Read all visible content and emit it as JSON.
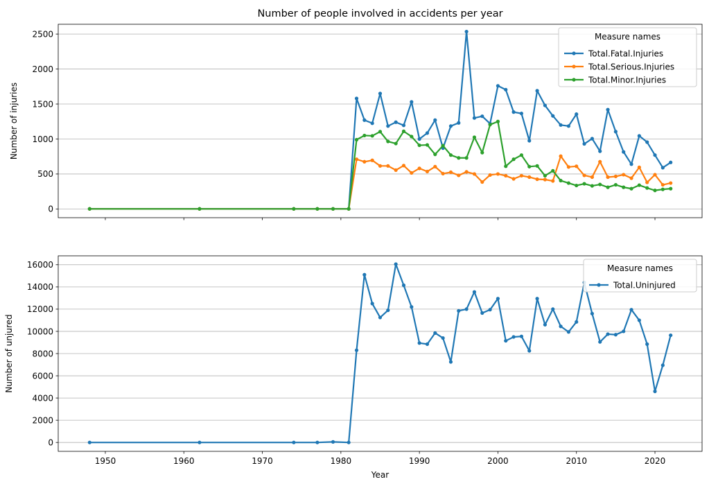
{
  "chart_data": [
    {
      "type": "line",
      "title": "Number of people involved in accidents per year",
      "xlabel": "",
      "ylabel": "Number of injuries",
      "xlim": [
        1944,
        2026
      ],
      "ylim": [
        -125,
        2640
      ],
      "yticks": [
        0,
        500,
        1000,
        1500,
        2000,
        2500
      ],
      "xticks": [
        1950,
        1960,
        1970,
        1980,
        1990,
        2000,
        2010,
        2020
      ],
      "show_xtick_labels": false,
      "grid": "y",
      "legend": {
        "title": "Measure names",
        "placement": "top-right"
      },
      "x": [
        1948,
        1962,
        1974,
        1977,
        1979,
        1981,
        1982,
        1983,
        1984,
        1985,
        1986,
        1987,
        1988,
        1989,
        1990,
        1991,
        1992,
        1993,
        1994,
        1995,
        1996,
        1997,
        1998,
        1999,
        2000,
        2001,
        2002,
        2003,
        2004,
        2005,
        2006,
        2007,
        2008,
        2009,
        2010,
        2011,
        2012,
        2013,
        2014,
        2015,
        2016,
        2017,
        2018,
        2019,
        2020,
        2021,
        2022
      ],
      "series": [
        {
          "name": "Total.Fatal.Injuries",
          "color": "#1f77b4",
          "values": [
            2,
            2,
            2,
            2,
            2,
            2,
            1580,
            1270,
            1225,
            1650,
            1185,
            1240,
            1195,
            1530,
            1000,
            1085,
            1270,
            870,
            1185,
            1230,
            2535,
            1300,
            1325,
            1220,
            1760,
            1705,
            1385,
            1365,
            975,
            1690,
            1480,
            1330,
            1200,
            1185,
            1355,
            930,
            1005,
            825,
            1420,
            1105,
            815,
            640,
            1045,
            955,
            770,
            590,
            665
          ]
        },
        {
          "name": "Total.Serious.Injuries",
          "color": "#ff7f0e",
          "values": [
            1,
            1,
            1,
            1,
            1,
            1,
            710,
            675,
            695,
            615,
            615,
            555,
            620,
            515,
            580,
            535,
            605,
            505,
            525,
            480,
            530,
            500,
            385,
            485,
            500,
            475,
            430,
            475,
            455,
            425,
            420,
            400,
            755,
            600,
            610,
            480,
            455,
            675,
            455,
            465,
            490,
            440,
            595,
            380,
            490,
            345,
            370
          ]
        },
        {
          "name": "Total.Minor.Injuries",
          "color": "#2ca02c",
          "values": [
            1,
            1,
            1,
            1,
            1,
            1,
            990,
            1050,
            1045,
            1105,
            965,
            935,
            1110,
            1035,
            910,
            915,
            780,
            905,
            770,
            730,
            730,
            1025,
            805,
            1205,
            1250,
            610,
            710,
            770,
            605,
            615,
            475,
            545,
            405,
            370,
            335,
            360,
            330,
            350,
            310,
            345,
            310,
            290,
            340,
            300,
            265,
            280,
            290
          ]
        }
      ]
    },
    {
      "type": "line",
      "title": "",
      "xlabel": "Year",
      "ylabel": "Number of unjured",
      "xlim": [
        1944,
        2026
      ],
      "ylim": [
        -800,
        16800
      ],
      "yticks": [
        0,
        2000,
        4000,
        6000,
        8000,
        10000,
        12000,
        14000,
        16000
      ],
      "xticks": [
        1950,
        1960,
        1970,
        1980,
        1990,
        2000,
        2010,
        2020
      ],
      "show_xtick_labels": true,
      "grid": "y",
      "legend": {
        "title": "Measure names",
        "placement": "top-right"
      },
      "x": [
        1948,
        1962,
        1974,
        1977,
        1979,
        1981,
        1982,
        1983,
        1984,
        1985,
        1986,
        1987,
        1988,
        1989,
        1990,
        1991,
        1992,
        1993,
        1994,
        1995,
        1996,
        1997,
        1998,
        1999,
        2000,
        2001,
        2002,
        2003,
        2004,
        2005,
        2006,
        2007,
        2008,
        2009,
        2010,
        2011,
        2012,
        2013,
        2014,
        2015,
        2016,
        2017,
        2018,
        2019,
        2020,
        2021,
        2022
      ],
      "series": [
        {
          "name": "Total.Uninjured",
          "color": "#1f77b4",
          "values": [
            0,
            0,
            0,
            0,
            50,
            0,
            8300,
            15100,
            12500,
            11250,
            11900,
            16050,
            14150,
            12200,
            8950,
            8850,
            9850,
            9400,
            7250,
            11850,
            12000,
            13550,
            11650,
            11950,
            12950,
            9150,
            9500,
            9550,
            8250,
            12950,
            10600,
            12000,
            10450,
            9950,
            10850,
            14400,
            11600,
            9050,
            9750,
            9700,
            10000,
            11950,
            11000,
            8850,
            4600,
            6950,
            9650
          ]
        }
      ]
    }
  ]
}
